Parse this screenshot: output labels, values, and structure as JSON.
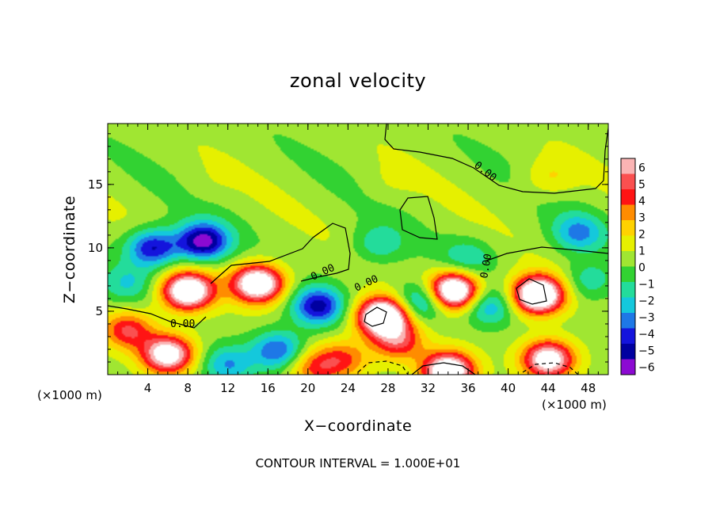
{
  "chart_data": {
    "type": "heatmap",
    "title": "zonal velocity",
    "xlabel": "X−coordinate",
    "ylabel": "Z−coordinate",
    "x_unit_label": "(×1000 m)",
    "footer": "CONTOUR INTERVAL = 1.000E+01",
    "xlim": [
      0,
      50
    ],
    "ylim": [
      0,
      19.8
    ],
    "x_ticks": [
      "4",
      "8",
      "12",
      "16",
      "20",
      "24",
      "28",
      "32",
      "36",
      "40",
      "44",
      "48"
    ],
    "y_ticks": [
      "5",
      "10",
      "15"
    ],
    "colorbar": {
      "ticks": [
        "6",
        "5",
        "4",
        "3",
        "2",
        "1",
        "0",
        "−1",
        "−2",
        "−3",
        "−4",
        "−5",
        "−6"
      ],
      "range": [
        -6,
        6
      ],
      "colors": [
        "#fab4b4",
        "#fa5050",
        "#ff1414",
        "#ff8c00",
        "#ffd200",
        "#e6f000",
        "#a0e632",
        "#32d232",
        "#23dc9b",
        "#14c8dc",
        "#1e78e6",
        "#1414dc",
        "#0000a0",
        "#8c0ad2"
      ]
    },
    "contour_labels": [
      "0.00",
      "0.00",
      "0.00",
      "0.00",
      "0.00"
    ],
    "features": [
      {
        "x": 8,
        "z": 6.6,
        "u": 8
      },
      {
        "x": 15,
        "z": 7.2,
        "u": 8
      },
      {
        "x": 27.5,
        "z": 4.6,
        "u": 9
      },
      {
        "x": 34.5,
        "z": 6.6,
        "u": 9
      },
      {
        "x": 43,
        "z": 6.3,
        "u": 9
      },
      {
        "x": 6,
        "z": 1.6,
        "u": 7
      },
      {
        "x": 34,
        "z": 0.3,
        "u": 8
      },
      {
        "x": 44,
        "z": 1.2,
        "u": 7
      },
      {
        "x": 2,
        "z": 3.5,
        "u": 4
      },
      {
        "x": 29,
        "z": 2.6,
        "u": 4
      },
      {
        "x": 23.5,
        "z": 1.2,
        "u": 3
      },
      {
        "x": 20.5,
        "z": 0.6,
        "u": 3
      },
      {
        "x": 9.5,
        "z": 10.5,
        "u": -6
      },
      {
        "x": 4.5,
        "z": 10.0,
        "u": -5
      },
      {
        "x": 21,
        "z": 5.4,
        "u": -5
      },
      {
        "x": 17,
        "z": 1.9,
        "u": -4
      },
      {
        "x": 31.5,
        "z": 5.8,
        "u": -4
      },
      {
        "x": 38,
        "z": 5.4,
        "u": -3
      },
      {
        "x": 47,
        "z": 11.2,
        "u": -3
      },
      {
        "x": 27,
        "z": 10.3,
        "u": -2
      },
      {
        "x": 2,
        "z": 7.2,
        "u": -2
      },
      {
        "x": 48,
        "z": 7.4,
        "u": -2
      },
      {
        "x": 36,
        "z": 9.2,
        "u": -2
      },
      {
        "x": 12,
        "z": 0.8,
        "u": -3
      },
      {
        "x": 28,
        "z": 15,
        "u": 0.5
      },
      {
        "x": 44,
        "z": 15.5,
        "u": 1.5
      },
      {
        "x": 10,
        "z": 15,
        "u": 0.3
      }
    ],
    "grid": false,
    "colorbar_position": "right"
  }
}
